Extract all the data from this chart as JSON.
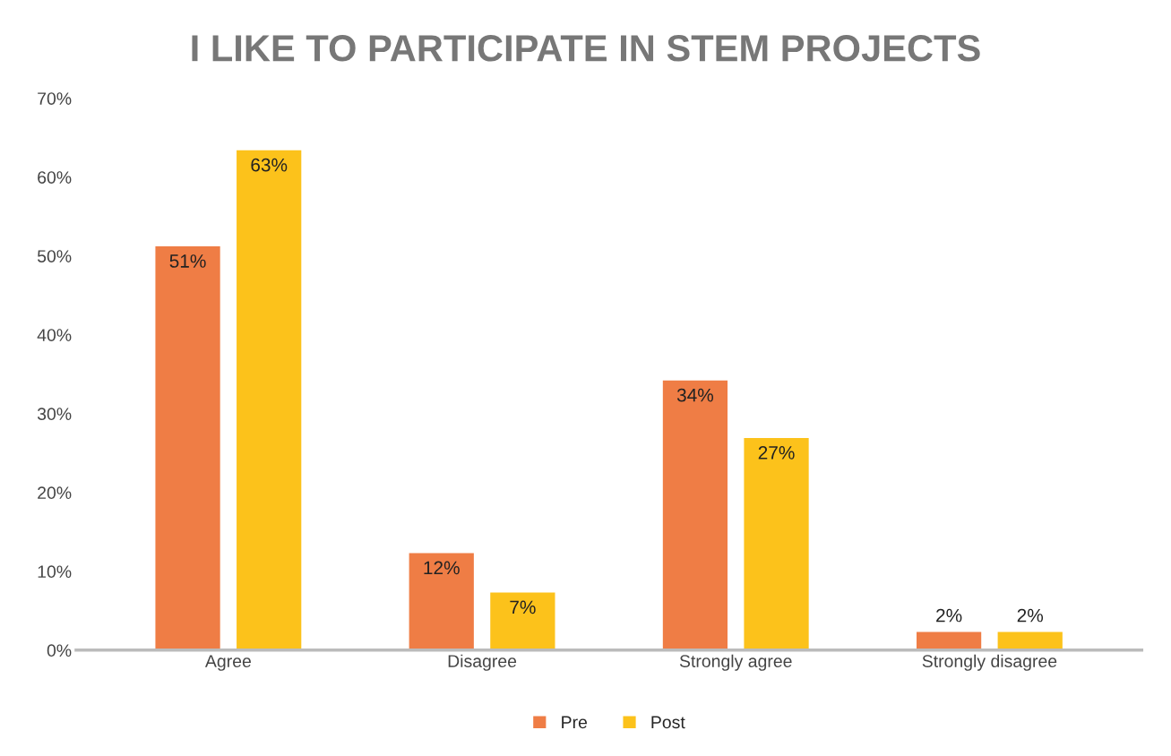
{
  "chart_data": {
    "type": "bar",
    "title": "I LIKE TO PARTICIPATE IN STEM PROJECTS",
    "categories": [
      "Agree",
      "Disagree",
      "Strongly agree",
      "Strongly disagree"
    ],
    "series": [
      {
        "name": "Pre",
        "color": "#ef7d45",
        "values": [
          51.3,
          12.4,
          34.3,
          2.4
        ],
        "value_labels": [
          "51%",
          "12%",
          "34%",
          "2%"
        ]
      },
      {
        "name": "Post",
        "color": "#fcc21b",
        "values": [
          63.5,
          7.4,
          27.0,
          2.4
        ],
        "value_labels": [
          "63%",
          "7%",
          "27%",
          "2%"
        ]
      }
    ],
    "ylim": [
      0,
      70
    ],
    "yticks": [
      {
        "value": 0,
        "label": "0%"
      },
      {
        "value": 10,
        "label": "10%"
      },
      {
        "value": 20,
        "label": "20%"
      },
      {
        "value": 30,
        "label": "30%"
      },
      {
        "value": 40,
        "label": "40%"
      },
      {
        "value": 50,
        "label": "50%"
      },
      {
        "value": 60,
        "label": "60%"
      },
      {
        "value": 70,
        "label": "70%"
      }
    ],
    "legend": "bottom",
    "grid": false
  }
}
